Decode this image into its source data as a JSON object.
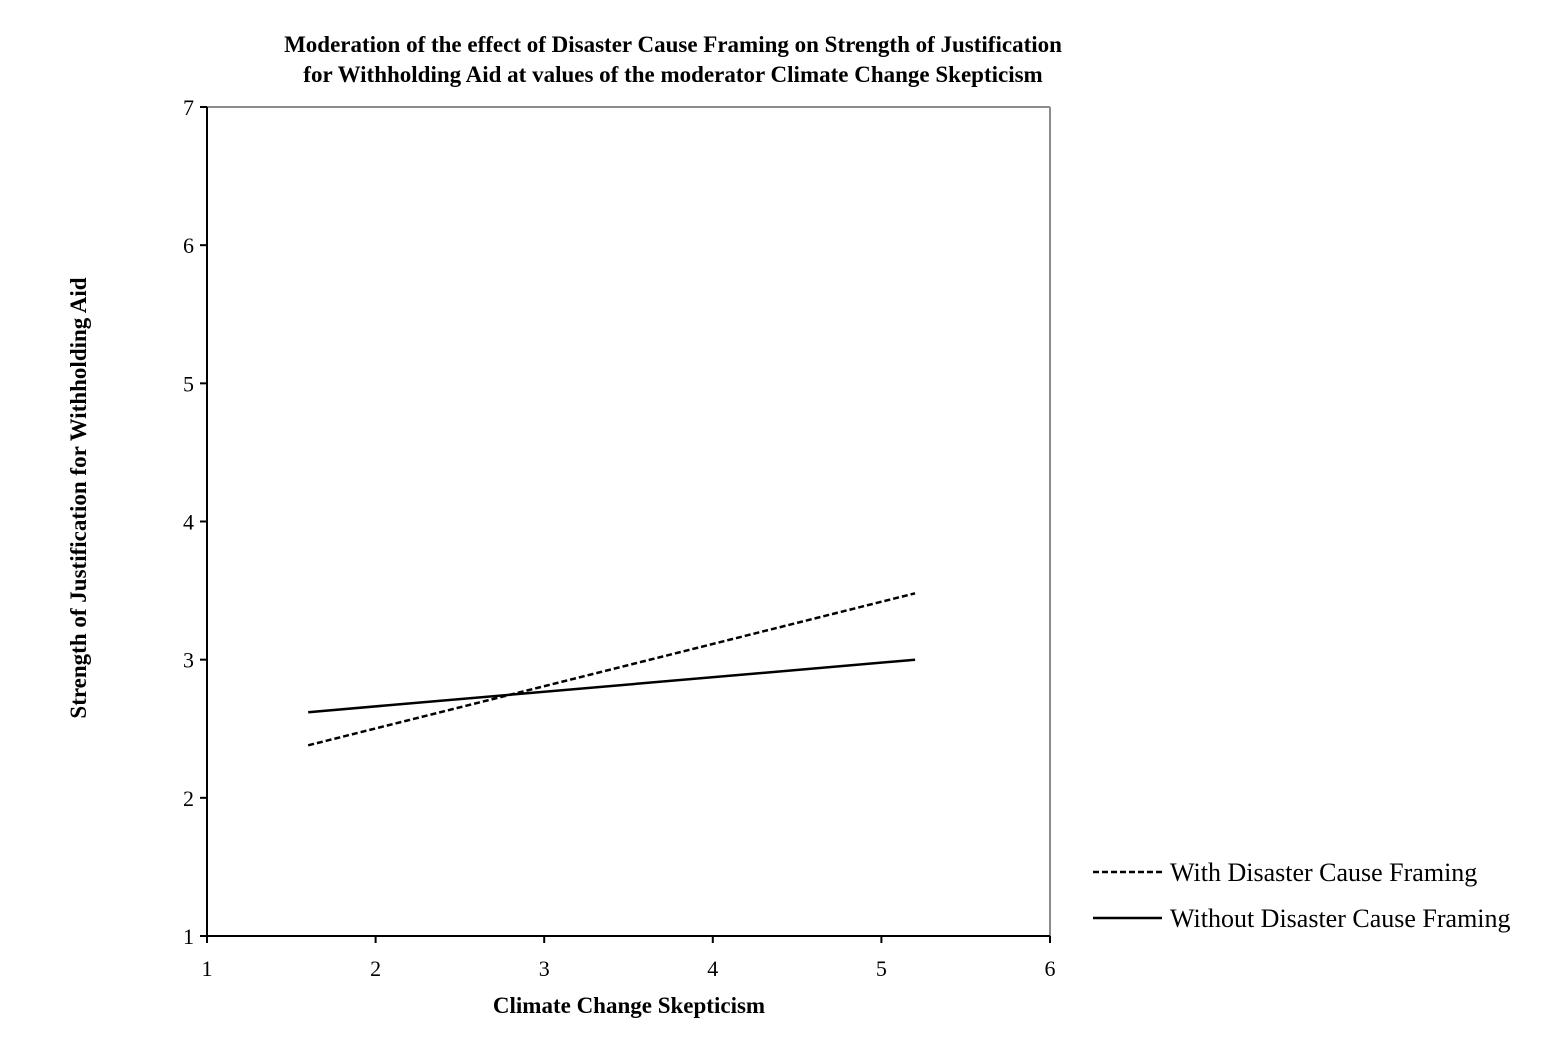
{
  "chart_data": {
    "type": "line",
    "title_lines": [
      "Moderation of the effect of Disaster Cause Framing on Strength of Justification",
      "for Withholding Aid at values of the moderator Climate Change Skepticism"
    ],
    "xlabel": "Climate Change Skepticism",
    "ylabel": "Strength of Justification for Withholding Aid",
    "xlim": [
      1,
      6
    ],
    "ylim": [
      1,
      7
    ],
    "xticks": [
      "1",
      "2",
      "3",
      "4",
      "5",
      "6"
    ],
    "yticks": [
      "1",
      "2",
      "3",
      "4",
      "5",
      "6",
      "7"
    ],
    "grid": false,
    "legend_position": "bottom-right outside plot",
    "series": [
      {
        "name": "With Disaster Cause Framing",
        "style": "dashed",
        "color": "#000000",
        "x": [
          1.6,
          5.2
        ],
        "y": [
          2.38,
          3.48
        ]
      },
      {
        "name": "Without Disaster Cause Framing",
        "style": "solid",
        "color": "#000000",
        "x": [
          1.6,
          5.2
        ],
        "y": [
          2.62,
          3.0
        ]
      }
    ]
  }
}
